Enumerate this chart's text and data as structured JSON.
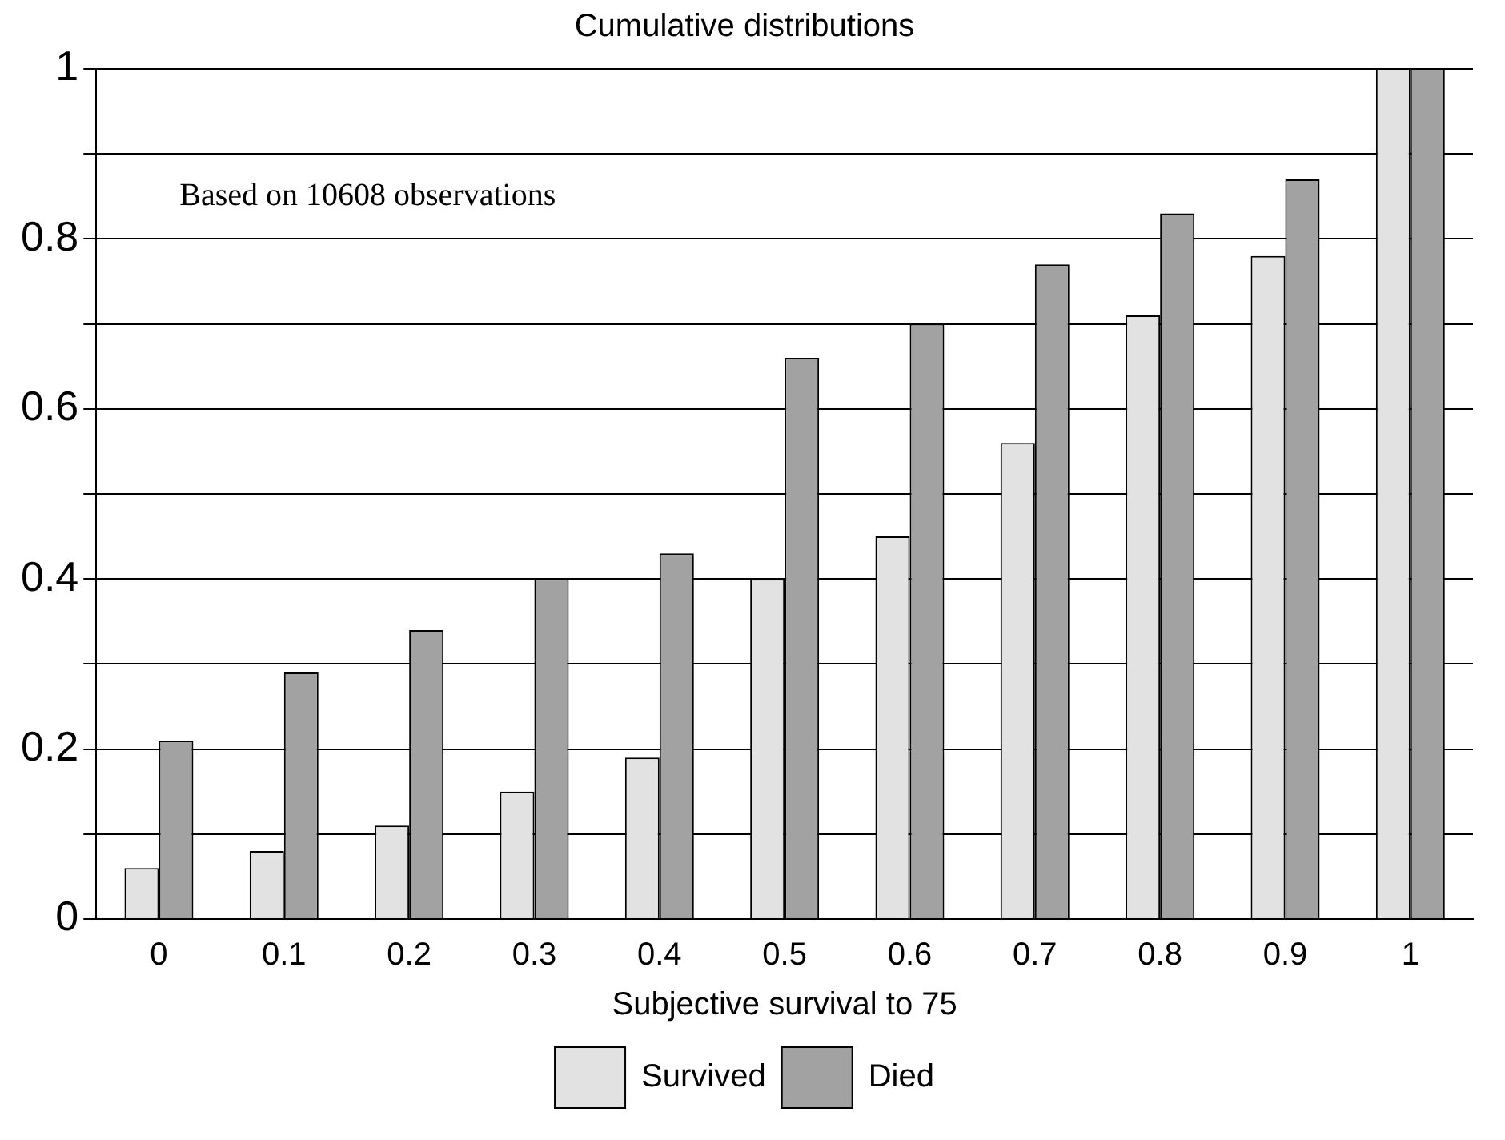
{
  "chart_data": {
    "type": "bar",
    "title": "Cumulative distributions",
    "xlabel": "Subjective survival to 75",
    "categories": [
      "0",
      "0.1",
      "0.2",
      "0.3",
      "0.4",
      "0.5",
      "0.6",
      "0.7",
      "0.8",
      "0.9",
      "1"
    ],
    "series": [
      {
        "name": "Survived",
        "color": "#e2e2e2",
        "values": [
          0.06,
          0.08,
          0.11,
          0.15,
          0.19,
          0.4,
          0.45,
          0.56,
          0.71,
          0.78,
          1
        ]
      },
      {
        "name": "Died",
        "color": "#a2a2a2",
        "values": [
          0.21,
          0.29,
          0.34,
          0.4,
          0.43,
          0.66,
          0.7,
          0.77,
          0.83,
          0.87,
          1
        ]
      }
    ],
    "ylim": [
      0,
      1
    ],
    "yticks": [
      0,
      {
        "value": 0.1,
        "label": null
      },
      0.2,
      {
        "value": 0.3,
        "label": null
      },
      0.4,
      {
        "value": 0.5,
        "label": null
      },
      0.6,
      {
        "value": 0.7,
        "label": null
      },
      0.8,
      {
        "value": 0.9,
        "label": null
      },
      1
    ],
    "grid": "y",
    "legend": "bottom",
    "annotations": [
      "Based on 10608 observations"
    ]
  }
}
